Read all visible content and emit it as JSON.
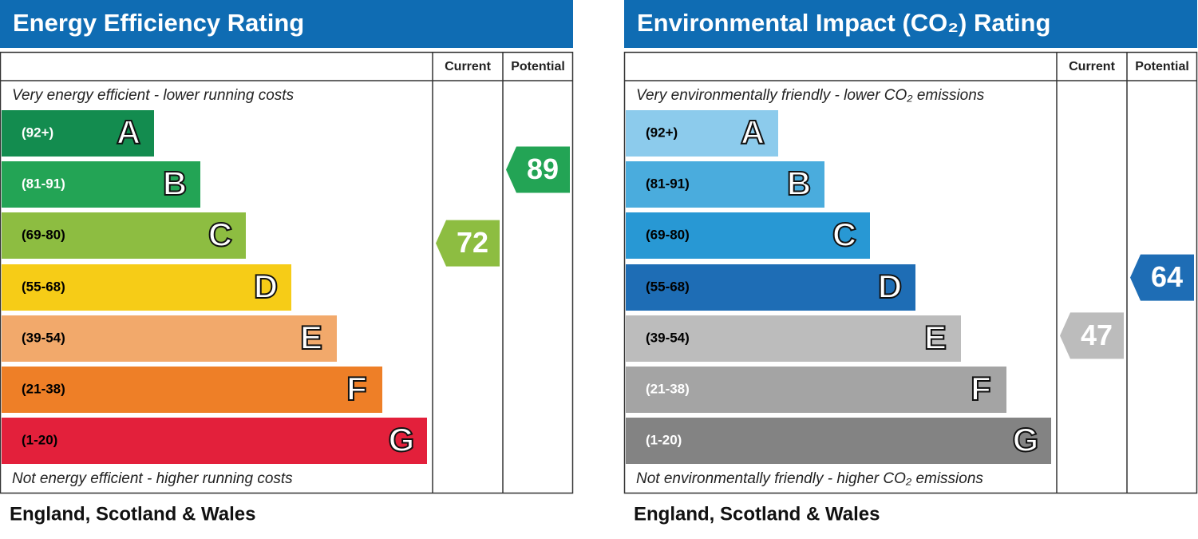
{
  "chart_data": [
    {
      "type": "rating",
      "title": "Energy Efficiency Rating",
      "columns": [
        "Current",
        "Potential"
      ],
      "top_note": "Very energy efficient - lower running costs",
      "bottom_note": "Not energy efficient - higher running costs",
      "footer": "England, Scotland & Wales",
      "title_color": "#0f6cb3",
      "bands": [
        {
          "range": "(92+)",
          "letter": "A",
          "min": 92,
          "max": null,
          "color": "#138c4f",
          "label_color": "#ffffff"
        },
        {
          "range": "(81-91)",
          "letter": "B",
          "min": 81,
          "max": 91,
          "color": "#23a455",
          "label_color": "#ffffff"
        },
        {
          "range": "(69-80)",
          "letter": "C",
          "min": 69,
          "max": 80,
          "color": "#8dbd41",
          "label_color": "#000000"
        },
        {
          "range": "(55-68)",
          "letter": "D",
          "min": 55,
          "max": 68,
          "color": "#f6cc17",
          "label_color": "#000000"
        },
        {
          "range": "(39-54)",
          "letter": "E",
          "min": 39,
          "max": 54,
          "color": "#f2a96b",
          "label_color": "#000000"
        },
        {
          "range": "(21-38)",
          "letter": "F",
          "min": 21,
          "max": 38,
          "color": "#ee7f27",
          "label_color": "#000000"
        },
        {
          "range": "(1-20)",
          "letter": "G",
          "min": 1,
          "max": 20,
          "color": "#e3203b",
          "label_color": "#000000"
        }
      ],
      "current": 72,
      "potential": 89
    },
    {
      "type": "rating",
      "title": "Environmental Impact (CO₂) Rating",
      "columns": [
        "Current",
        "Potential"
      ],
      "top_note": "Very environmentally friendly - lower CO₂ emissions",
      "bottom_note": "Not environmentally friendly - higher CO₂ emissions",
      "footer": "England, Scotland & Wales",
      "title_color": "#0f6cb3",
      "bands": [
        {
          "range": "(92+)",
          "letter": "A",
          "min": 92,
          "max": null,
          "color": "#8ccbec",
          "label_color": "#000000"
        },
        {
          "range": "(81-91)",
          "letter": "B",
          "min": 81,
          "max": 91,
          "color": "#4aacdd",
          "label_color": "#000000"
        },
        {
          "range": "(69-80)",
          "letter": "C",
          "min": 69,
          "max": 80,
          "color": "#2898d4",
          "label_color": "#000000"
        },
        {
          "range": "(55-68)",
          "letter": "D",
          "min": 55,
          "max": 68,
          "color": "#1e6db5",
          "label_color": "#000000"
        },
        {
          "range": "(39-54)",
          "letter": "E",
          "min": 39,
          "max": 54,
          "color": "#bcbcbc",
          "label_color": "#000000"
        },
        {
          "range": "(21-38)",
          "letter": "F",
          "min": 21,
          "max": 38,
          "color": "#a4a4a4",
          "label_color": "#ffffff"
        },
        {
          "range": "(1-20)",
          "letter": "G",
          "min": 1,
          "max": 20,
          "color": "#838383",
          "label_color": "#ffffff"
        }
      ],
      "current": 47,
      "potential": 64
    }
  ]
}
